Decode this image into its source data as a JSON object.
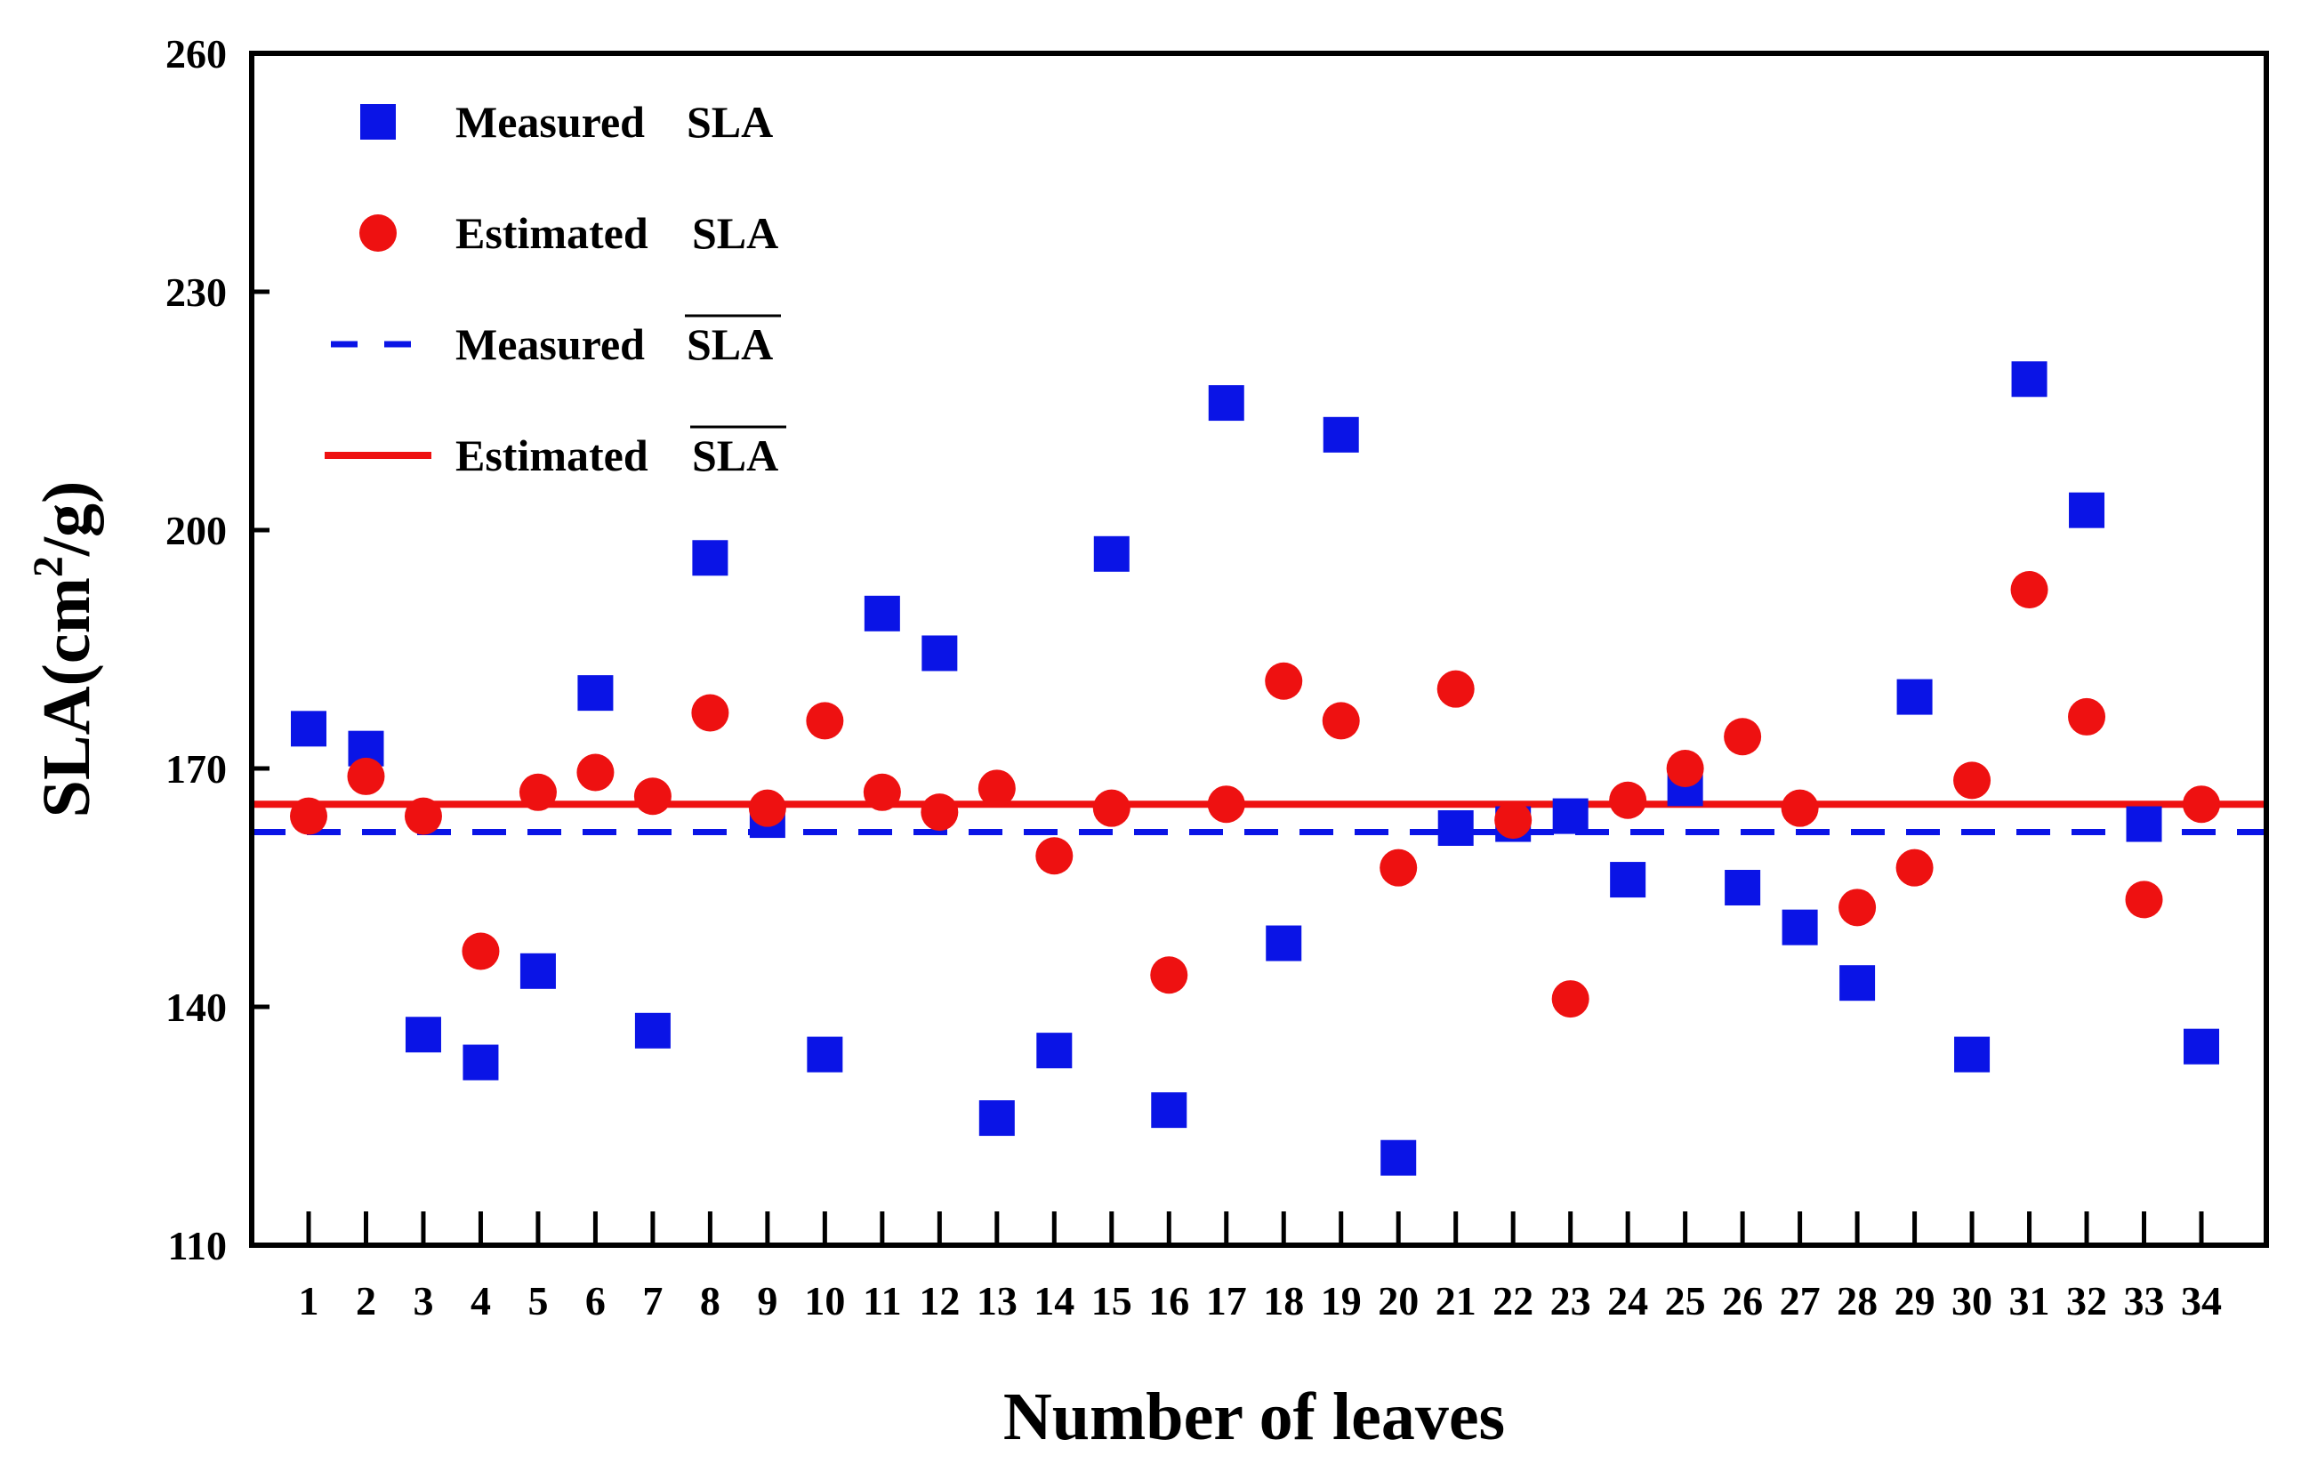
{
  "chart_data": {
    "type": "scatter",
    "title": "",
    "xlabel": "Number of leaves",
    "ylabel_main": "SLA(cm",
    "ylabel_sup": "2",
    "ylabel_tail": "/g)",
    "ylim": [
      110,
      260
    ],
    "yticks": [
      110,
      140,
      170,
      200,
      230,
      260
    ],
    "categories": [
      "1",
      "2",
      "3",
      "4",
      "5",
      "6",
      "7",
      "8",
      "9",
      "10",
      "11",
      "12",
      "13",
      "14",
      "15",
      "16",
      "17",
      "18",
      "19",
      "20",
      "21",
      "22",
      "23",
      "24",
      "25",
      "26",
      "27",
      "28",
      "29",
      "30",
      "31",
      "32",
      "33",
      "34"
    ],
    "series": [
      {
        "name": "Measured SLA",
        "label_word": "Measured",
        "label_sym": "SLA",
        "marker": "square",
        "color": "#0a14e6",
        "values": [
          175,
          172.5,
          136.5,
          133,
          144.5,
          179.5,
          137,
          196.5,
          163.5,
          134,
          189.5,
          184.5,
          126,
          134.5,
          197,
          127,
          216,
          148,
          212,
          121,
          162.5,
          163,
          164,
          156,
          167.5,
          155,
          150,
          143,
          179,
          134,
          219,
          202.5,
          163,
          135
        ]
      },
      {
        "name": "Estimated SLA",
        "label_word": "Estimated",
        "label_sym": "SLA",
        "marker": "circle",
        "color": "#ee1111",
        "values": [
          164,
          169,
          164,
          147,
          167,
          169.5,
          166.5,
          177,
          165,
          176,
          167,
          164.5,
          167.5,
          159,
          165,
          144,
          165.5,
          181,
          176,
          157.5,
          180,
          163.5,
          141,
          166,
          170,
          174,
          165,
          152.5,
          157.5,
          168.5,
          192.5,
          176.5,
          153.5,
          165.5
        ]
      }
    ],
    "mean_lines": [
      {
        "name": "Measured mean SLA",
        "label_word": "Measured",
        "label_sym": "SLA",
        "value": 162,
        "style": "dashed",
        "color": "#0a14e6"
      },
      {
        "name": "Estimated mean SLA",
        "label_word": "Estimated",
        "label_sym": "SLA",
        "value": 165.5,
        "style": "solid",
        "color": "#ee1111"
      }
    ],
    "legend_position": "top-left"
  }
}
